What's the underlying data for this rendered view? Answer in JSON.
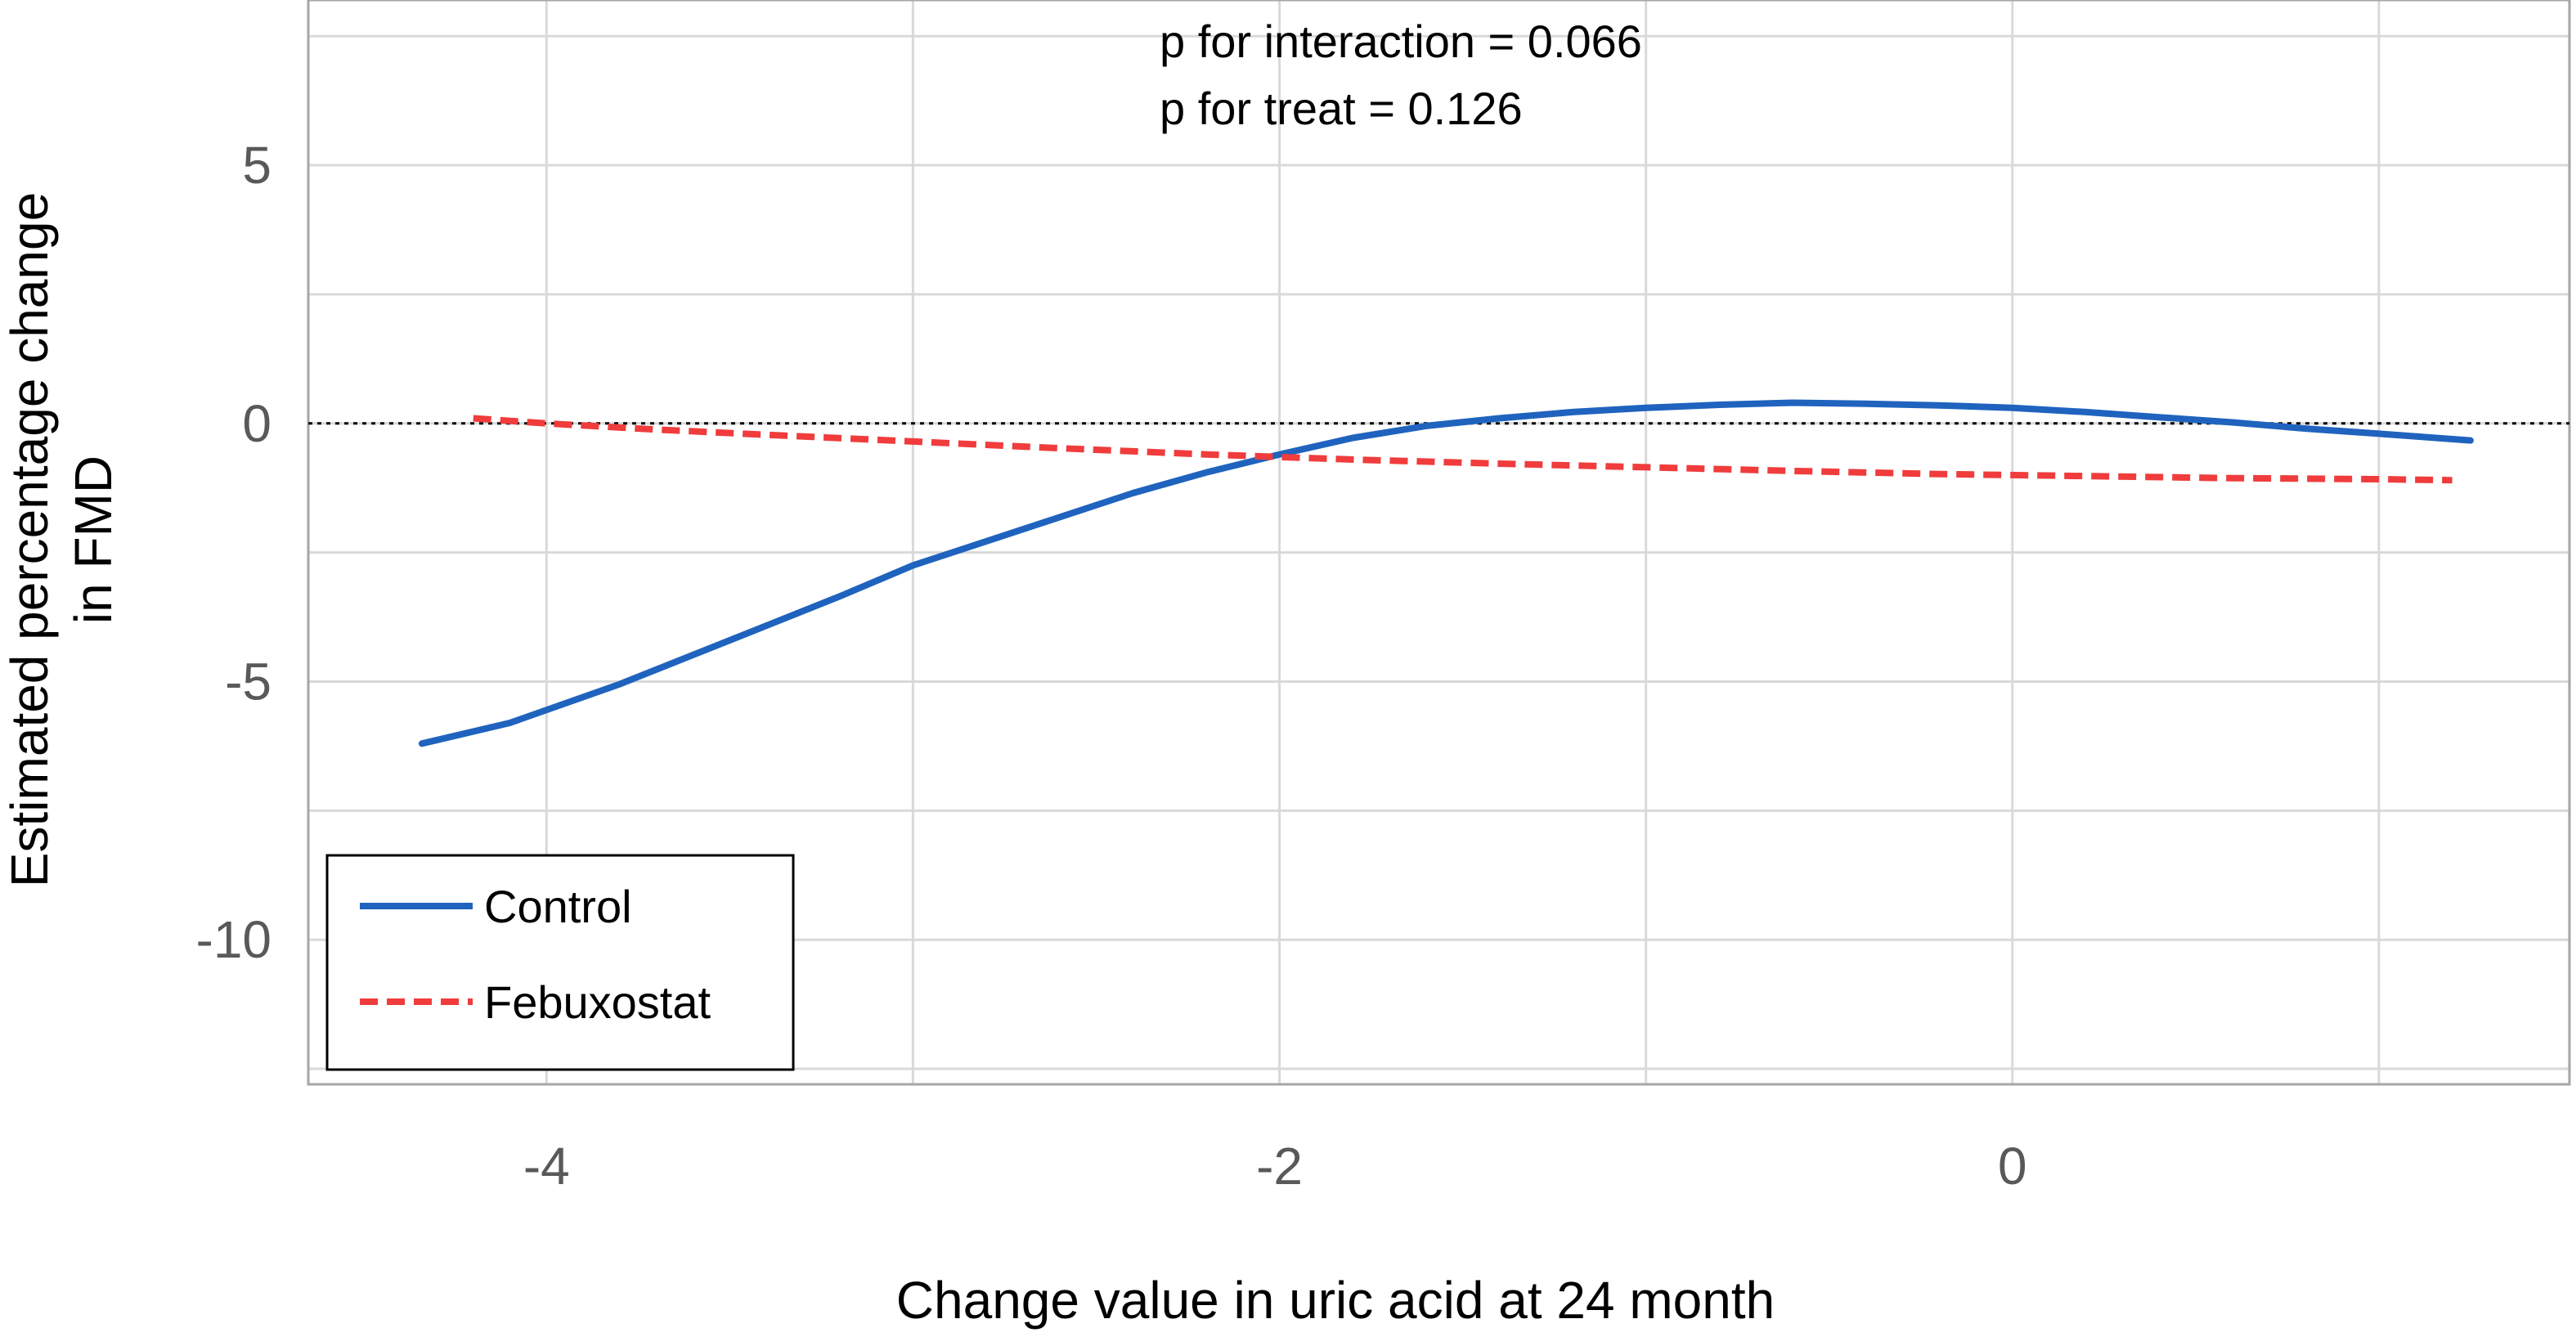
{
  "chart_data": {
    "type": "line",
    "xlabel": "Change value in uric acid at 24 month",
    "ylabel_line1": "Estimated percentage change",
    "ylabel_line2": "in FMD",
    "xlim": [
      -4.65,
      1.52
    ],
    "ylim": [
      -12.8,
      8.2
    ],
    "x_ticks": [
      -4,
      -2,
      0
    ],
    "x_tick_labels": [
      "-4",
      "-2",
      "0"
    ],
    "x_grid": [
      -4,
      -3,
      -2,
      -1,
      0,
      1
    ],
    "y_ticks": [
      5,
      0,
      -5,
      -10
    ],
    "y_tick_labels": [
      "5",
      "0",
      "-5",
      "-10"
    ],
    "y_grid": [
      7.5,
      5,
      2.5,
      0,
      -2.5,
      -5,
      -7.5,
      -10,
      -12.5
    ],
    "reference_line_y": 0,
    "annotations": [
      "p for interaction = 0.066",
      "p for treat = 0.126"
    ],
    "legend": {
      "position": "bottom-left",
      "entries": [
        "Control",
        "Febuxostat"
      ]
    },
    "series": [
      {
        "name": "Control",
        "color": "#1F63BE",
        "style": "solid",
        "x": [
          -4.34,
          -4.1,
          -3.8,
          -3.5,
          -3.2,
          -3.0,
          -2.7,
          -2.4,
          -2.2,
          -2.0,
          -1.8,
          -1.6,
          -1.4,
          -1.2,
          -1.0,
          -0.8,
          -0.6,
          -0.4,
          -0.2,
          0.0,
          0.2,
          0.4,
          0.6,
          0.8,
          1.0,
          1.25
        ],
        "y": [
          -6.2,
          -5.8,
          -5.05,
          -4.2,
          -3.35,
          -2.75,
          -2.05,
          -1.35,
          -0.95,
          -0.6,
          -0.28,
          -0.05,
          0.1,
          0.22,
          0.3,
          0.36,
          0.4,
          0.38,
          0.35,
          0.3,
          0.22,
          0.12,
          0.02,
          -0.1,
          -0.2,
          -0.33
        ]
      },
      {
        "name": "Febuxostat",
        "color": "#F03C3C",
        "style": "dashed",
        "x": [
          -4.2,
          -4.0,
          -3.7,
          -3.4,
          -3.0,
          -2.6,
          -2.2,
          -1.8,
          -1.4,
          -1.0,
          -0.6,
          -0.2,
          0.2,
          0.6,
          1.0,
          1.2
        ],
        "y": [
          0.1,
          0.0,
          -0.12,
          -0.22,
          -0.35,
          -0.48,
          -0.6,
          -0.7,
          -0.78,
          -0.85,
          -0.92,
          -0.98,
          -1.02,
          -1.06,
          -1.08,
          -1.1
        ]
      }
    ]
  }
}
